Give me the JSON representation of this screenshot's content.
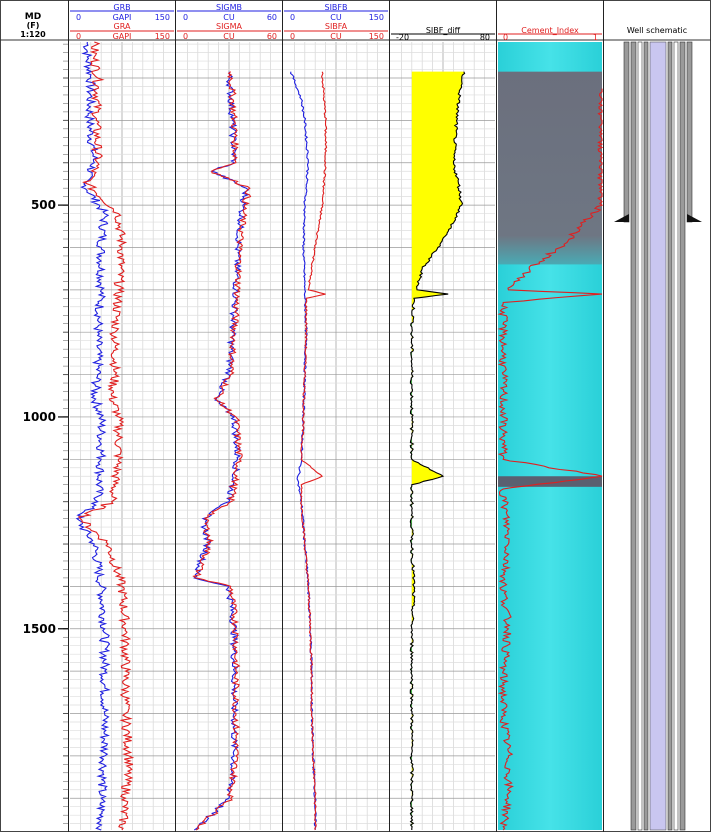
{
  "depth_track": {
    "title_line1": "MD",
    "title_line2": "(F)",
    "scale": "1:120",
    "ticks": [
      "500",
      "1000",
      "1500"
    ],
    "tick_values": [
      500,
      1000,
      1500
    ]
  },
  "tracks": {
    "gr": {
      "curve_b": {
        "name": "GRB",
        "unit": "GAPI",
        "min": "0",
        "max": "150"
      },
      "curve_a": {
        "name": "GRA",
        "unit": "GAPI",
        "min": "0",
        "max": "150"
      }
    },
    "sigma": {
      "curve_b": {
        "name": "SIGMB",
        "unit": "CU",
        "min": "0",
        "max": "60"
      },
      "curve_a": {
        "name": "SIGMA",
        "unit": "CU",
        "min": "0",
        "max": "60"
      }
    },
    "sibf": {
      "curve_b": {
        "name": "SIBFB",
        "unit": "CU",
        "min": "0",
        "max": "150"
      },
      "curve_a": {
        "name": "SIBFA",
        "unit": "CU",
        "min": "0",
        "max": "150"
      }
    },
    "sibf_diff": {
      "name": "SIBF_diff",
      "min": "-20",
      "max": "80"
    },
    "cement": {
      "name": "Cement_Index",
      "min": "0",
      "max": "1"
    },
    "schematic": {
      "name": "Well schematic"
    }
  },
  "colors": {
    "blue": "#1f1fe0",
    "red": "#e01f1f",
    "yellow": "#ffff00",
    "green": "#22aa22",
    "cyan": "#33d6dd",
    "grey": "#6b7080"
  },
  "chart_data": {
    "type": "well-log",
    "depth_unit": "F",
    "depth_range": [
      115,
      1975
    ],
    "tracks": [
      {
        "name": "GR",
        "series": [
          {
            "name": "GRB",
            "unit": "GAPI",
            "range": [
              0,
              150
            ],
            "color": "blue",
            "points": [
              [
                115,
                25
              ],
              [
                150,
                25
              ],
              [
                200,
                30
              ],
              [
                300,
                28
              ],
              [
                400,
                35
              ],
              [
                450,
                20
              ],
              [
                520,
                50
              ],
              [
                600,
                45
              ],
              [
                700,
                45
              ],
              [
                800,
                40
              ],
              [
                900,
                40
              ],
              [
                950,
                35
              ],
              [
                1000,
                45
              ],
              [
                1100,
                45
              ],
              [
                1200,
                40
              ],
              [
                1240,
                10
              ],
              [
                1300,
                35
              ],
              [
                1400,
                45
              ],
              [
                1500,
                50
              ],
              [
                1600,
                50
              ],
              [
                1700,
                50
              ],
              [
                1800,
                50
              ],
              [
                1900,
                45
              ],
              [
                1975,
                45
              ]
            ]
          },
          {
            "name": "GRA",
            "unit": "GAPI",
            "range": [
              0,
              150
            ],
            "color": "red",
            "points": [
              [
                115,
                35
              ],
              [
                150,
                35
              ],
              [
                200,
                40
              ],
              [
                300,
                38
              ],
              [
                400,
                40
              ],
              [
                450,
                25
              ],
              [
                520,
                70
              ],
              [
                600,
                75
              ],
              [
                700,
                70
              ],
              [
                800,
                65
              ],
              [
                900,
                65
              ],
              [
                950,
                60
              ],
              [
                1000,
                70
              ],
              [
                1100,
                70
              ],
              [
                1200,
                60
              ],
              [
                1240,
                15
              ],
              [
                1300,
                55
              ],
              [
                1400,
                75
              ],
              [
                1500,
                80
              ],
              [
                1600,
                80
              ],
              [
                1700,
                80
              ],
              [
                1800,
                85
              ],
              [
                1900,
                80
              ],
              [
                1975,
                75
              ]
            ]
          }
        ]
      },
      {
        "name": "SIGMA",
        "series": [
          {
            "name": "SIGMB",
            "unit": "CU",
            "range": [
              0,
              60
            ],
            "color": "blue",
            "points": [
              [
                185,
                30
              ],
              [
                300,
                32
              ],
              [
                400,
                33
              ],
              [
                420,
                20
              ],
              [
                460,
                40
              ],
              [
                500,
                38
              ],
              [
                600,
                35
              ],
              [
                700,
                34
              ],
              [
                800,
                32
              ],
              [
                900,
                30
              ],
              [
                960,
                22
              ],
              [
                1000,
                33
              ],
              [
                1100,
                35
              ],
              [
                1200,
                30
              ],
              [
                1240,
                15
              ],
              [
                1300,
                18
              ],
              [
                1380,
                10
              ],
              [
                1400,
                30
              ],
              [
                1500,
                33
              ],
              [
                1600,
                33
              ],
              [
                1700,
                33
              ],
              [
                1800,
                33
              ],
              [
                1900,
                30
              ],
              [
                1975,
                10
              ]
            ]
          },
          {
            "name": "SIGMA",
            "unit": "CU",
            "range": [
              0,
              60
            ],
            "color": "red",
            "points": [
              [
                185,
                31
              ],
              [
                300,
                33
              ],
              [
                400,
                34
              ],
              [
                420,
                20
              ],
              [
                460,
                42
              ],
              [
                500,
                39
              ],
              [
                600,
                36
              ],
              [
                700,
                35
              ],
              [
                800,
                33
              ],
              [
                900,
                31
              ],
              [
                960,
                23
              ],
              [
                1000,
                34
              ],
              [
                1100,
                36
              ],
              [
                1200,
                31
              ],
              [
                1240,
                16
              ],
              [
                1300,
                19
              ],
              [
                1380,
                11
              ],
              [
                1400,
                31
              ],
              [
                1500,
                34
              ],
              [
                1600,
                34
              ],
              [
                1700,
                34
              ],
              [
                1800,
                34
              ],
              [
                1900,
                31
              ],
              [
                1975,
                11
              ]
            ]
          }
        ]
      },
      {
        "name": "SIBF",
        "series": [
          {
            "name": "SIBFB",
            "unit": "CU",
            "range": [
              0,
              150
            ],
            "color": "blue",
            "points": [
              [
                185,
                10
              ],
              [
                250,
                25
              ],
              [
                300,
                30
              ],
              [
                400,
                35
              ],
              [
                500,
                30
              ],
              [
                600,
                28
              ],
              [
                700,
                30
              ],
              [
                800,
                32
              ],
              [
                900,
                30
              ],
              [
                1000,
                28
              ],
              [
                1100,
                25
              ],
              [
                1150,
                20
              ],
              [
                1200,
                25
              ],
              [
                1300,
                30
              ],
              [
                1400,
                35
              ],
              [
                1500,
                38
              ],
              [
                1600,
                40
              ],
              [
                1700,
                40
              ],
              [
                1800,
                42
              ],
              [
                1900,
                45
              ],
              [
                1975,
                45
              ]
            ]
          },
          {
            "name": "SIBFA",
            "unit": "CU",
            "range": [
              0,
              150
            ],
            "color": "red",
            "points": [
              [
                185,
                55
              ],
              [
                300,
                60
              ],
              [
                400,
                60
              ],
              [
                500,
                55
              ],
              [
                600,
                45
              ],
              [
                700,
                35
              ],
              [
                710,
                60
              ],
              [
                720,
                32
              ],
              [
                800,
                32
              ],
              [
                900,
                30
              ],
              [
                1000,
                28
              ],
              [
                1100,
                25
              ],
              [
                1140,
                55
              ],
              [
                1160,
                25
              ],
              [
                1200,
                25
              ],
              [
                1300,
                30
              ],
              [
                1400,
                35
              ],
              [
                1500,
                38
              ],
              [
                1600,
                40
              ],
              [
                1700,
                40
              ],
              [
                1800,
                42
              ],
              [
                1900,
                45
              ],
              [
                1975,
                45
              ]
            ]
          }
        ]
      },
      {
        "name": "SIBF_diff",
        "series": [
          {
            "name": "SIBF_diff",
            "range": [
              -20,
              80
            ],
            "fill_positive": "yellow",
            "fill_negative": "green",
            "points": [
              [
                185,
                50
              ],
              [
                250,
                45
              ],
              [
                300,
                43
              ],
              [
                400,
                40
              ],
              [
                450,
                45
              ],
              [
                500,
                48
              ],
              [
                550,
                38
              ],
              [
                600,
                25
              ],
              [
                650,
                10
              ],
              [
                700,
                5
              ],
              [
                710,
                35
              ],
              [
                720,
                2
              ],
              [
                800,
                0
              ],
              [
                900,
                0
              ],
              [
                1000,
                0
              ],
              [
                1100,
                0
              ],
              [
                1140,
                30
              ],
              [
                1160,
                0
              ],
              [
                1200,
                0
              ],
              [
                1300,
                0
              ],
              [
                1400,
                2
              ],
              [
                1500,
                0
              ],
              [
                1600,
                0
              ],
              [
                1700,
                0
              ],
              [
                1800,
                0
              ],
              [
                1900,
                0
              ],
              [
                1975,
                0
              ]
            ]
          }
        ]
      },
      {
        "name": "Cement_Index",
        "series": [
          {
            "name": "Cement_Index",
            "range": [
              0,
              1
            ],
            "color": "red",
            "points": [
              [
                225,
                1
              ],
              [
                300,
                1
              ],
              [
                400,
                1
              ],
              [
                500,
                1
              ],
              [
                550,
                0.8
              ],
              [
                600,
                0.6
              ],
              [
                650,
                0.3
              ],
              [
                700,
                0.1
              ],
              [
                710,
                1
              ],
              [
                730,
                0.05
              ],
              [
                800,
                0.05
              ],
              [
                900,
                0.05
              ],
              [
                1000,
                0.05
              ],
              [
                1100,
                0.05
              ],
              [
                1140,
                1
              ],
              [
                1170,
                0.05
              ],
              [
                1300,
                0.1
              ],
              [
                1400,
                0.05
              ],
              [
                1500,
                0.1
              ],
              [
                1600,
                0.05
              ],
              [
                1700,
                0.05
              ],
              [
                1800,
                0.1
              ],
              [
                1900,
                0.1
              ],
              [
                1975,
                0.05
              ]
            ]
          }
        ]
      }
    ]
  }
}
